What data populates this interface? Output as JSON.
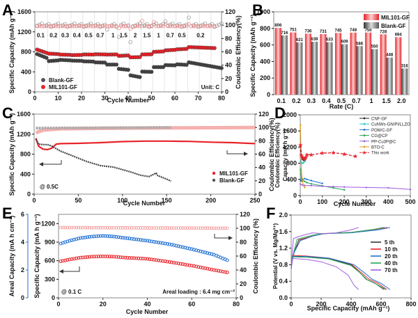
{
  "chart_data": [
    {
      "panel": "A",
      "type": "scatter",
      "xlabel": "Cycle Number",
      "ylabel": "Specific Capacity (mAh g⁻¹)",
      "y2label": "Coulombic Efficiency(%)",
      "xlim": [
        0,
        80
      ],
      "ylim": [
        0,
        1600
      ],
      "y2lim": [
        0,
        120
      ],
      "xticks": [
        "0",
        "10",
        "20",
        "30",
        "40",
        "50",
        "60",
        "70",
        "80"
      ],
      "yticks": [
        "0",
        "400",
        "800",
        "1200",
        "1600"
      ],
      "y2ticks": [
        "0",
        "20",
        "40",
        "60",
        "80",
        "100",
        "120"
      ],
      "rate_labels": [
        "0.1",
        "0.2",
        "0.3",
        "0.4",
        "0.5",
        "0.7",
        "1",
        "1.5",
        "2",
        "1.5",
        "1",
        "0.7",
        "0.5",
        "0.2"
      ],
      "unit_label": "Unit: C",
      "legend": [
        "Blank-GF",
        "MIL101-GF"
      ],
      "series": [
        {
          "name": "MIL101-GF",
          "color": "#e8232a",
          "segments": [
            [
              1,
              5,
              845,
              780
            ],
            [
              6,
              10,
              765,
              755
            ],
            [
              11,
              15,
              745,
              740
            ],
            [
              16,
              20,
              735,
              738
            ],
            [
              21,
              25,
              748,
              745
            ],
            [
              26,
              30,
              752,
              748
            ],
            [
              31,
              35,
              745,
              748
            ],
            [
              36,
              40,
              720,
              728
            ],
            [
              41,
              45,
              690,
              695
            ],
            [
              46,
              50,
              748,
              752
            ],
            [
              51,
              55,
              800,
              808
            ],
            [
              56,
              60,
              830,
              840
            ],
            [
              61,
              65,
              850,
              860
            ],
            [
              66,
              77,
              895,
              875
            ]
          ]
        },
        {
          "name": "Blank-GF",
          "color": "#444444",
          "segments": [
            [
              1,
              5,
              755,
              680
            ],
            [
              6,
              10,
              615,
              630
            ],
            [
              11,
              15,
              640,
              630
            ],
            [
              16,
              20,
              625,
              620
            ],
            [
              21,
              25,
              610,
              605
            ],
            [
              26,
              30,
              590,
              585
            ],
            [
              31,
              35,
              545,
              545
            ],
            [
              36,
              40,
              460,
              440
            ],
            [
              41,
              45,
              330,
              295
            ],
            [
              46,
              50,
              405,
              400
            ],
            [
              51,
              55,
              495,
              495
            ],
            [
              56,
              60,
              535,
              530
            ],
            [
              61,
              65,
              550,
              540
            ],
            [
              66,
              80,
              590,
              475
            ]
          ]
        },
        {
          "name": "MIL101-GF CE (%)",
          "color": "#f08a8a",
          "approx_value": 99
        },
        {
          "name": "Blank-GF CE (%)",
          "color": "#999999",
          "approx_value": 100
        }
      ]
    },
    {
      "panel": "B",
      "type": "bar",
      "title": "",
      "xlabel": "Rate (C)",
      "ylabel": "Specific Capacity (mAh g⁻¹)",
      "ylim": [
        0,
        1000
      ],
      "yticks": [
        "0",
        "200",
        "400",
        "600",
        "800",
        "1000"
      ],
      "categories": [
        "0.1",
        "0.2",
        "0.3",
        "0.4",
        "0.5",
        "0.7",
        "1",
        "1.5",
        "2.0"
      ],
      "series": [
        {
          "name": "MIL101-GF",
          "color": "#e8232a",
          "values": [
            806,
            751,
            736,
            731,
            745,
            749,
            750,
            728,
            694
          ]
        },
        {
          "name": "Blank-GF",
          "color": "#555555",
          "values": [
            716,
            631,
            639,
            633,
            609,
            586,
            550,
            448,
            316
          ]
        }
      ],
      "legend_position": "top-right"
    },
    {
      "panel": "C",
      "type": "line",
      "xlabel": "Cycle Number",
      "ylabel": "Specific Capacity (mAh g⁻¹)",
      "y2label": "Coulombic Efficiency(%)",
      "xlim": [
        0,
        250
      ],
      "ylim": [
        0,
        1600
      ],
      "y2lim": [
        0,
        120
      ],
      "xticks": [
        "0",
        "50",
        "100",
        "150",
        "200",
        "250"
      ],
      "yticks": [
        "0",
        "400",
        "800",
        "1200",
        "1600"
      ],
      "y2ticks": [
        "0",
        "20",
        "40",
        "60",
        "80",
        "100",
        "120"
      ],
      "annotation": "@ 0.5C",
      "legend": [
        "MIL101-GF",
        "Blank-GF"
      ],
      "series": [
        {
          "name": "MIL101-GF capacity",
          "color": "#e8232a",
          "x": [
            2,
            5,
            10,
            15,
            20,
            25,
            30,
            50,
            75,
            100,
            125,
            150,
            175,
            200,
            225,
            250
          ],
          "y": [
            1120,
            960,
            900,
            890,
            920,
            1000,
            1010,
            1015,
            1030,
            1050,
            1060,
            1060,
            1055,
            1040,
            1030,
            1010
          ]
        },
        {
          "name": "Blank-GF capacity",
          "color": "#444444",
          "x": [
            2,
            5,
            10,
            15,
            20,
            30,
            40,
            50,
            60,
            75,
            90,
            100,
            110,
            120,
            130,
            138,
            140,
            150,
            155
          ],
          "y": [
            1100,
            1000,
            990,
            990,
            960,
            860,
            790,
            720,
            650,
            570,
            540,
            490,
            440,
            380,
            350,
            420,
            370,
            300,
            260
          ]
        },
        {
          "name": "MIL101-GF CE (%)",
          "color": "#f08a8a",
          "x": [
            2,
            10,
            30,
            100,
            250
          ],
          "y": [
            92,
            96,
            98,
            99,
            100
          ]
        },
        {
          "name": "Blank-GF CE (%)",
          "color": "#999999",
          "x": [
            2,
            155
          ],
          "y": [
            99,
            100
          ]
        }
      ]
    },
    {
      "panel": "D",
      "type": "line",
      "xlabel": "Cycle Number",
      "ylabel": "Capacity (mA h g⁻¹)",
      "ylabel_extra": "Coulombic Efficiency(%)",
      "xlim": [
        0,
        500
      ],
      "ylim": [
        0,
        2000
      ],
      "xticks": [
        "0",
        "100",
        "200",
        "300",
        "400",
        "500"
      ],
      "yticks": [
        "0",
        "400",
        "800",
        "1200",
        "1600",
        "2000"
      ],
      "series": [
        {
          "name": "CNF-GF",
          "color": "#222222",
          "x": [
            1,
            3,
            5,
            8,
            10,
            15,
            20
          ],
          "y": [
            1250,
            1100,
            1000,
            950,
            900,
            870,
            850
          ]
        },
        {
          "name": "CuNWs-GN/PI/LLZO",
          "color": "#2ec4c4",
          "x": [
            1,
            5,
            10,
            15,
            20,
            25
          ],
          "y": [
            850,
            820,
            800,
            810,
            850,
            900
          ]
        },
        {
          "name": "POM/C-GF",
          "color": "#1f6fd1",
          "x": [
            1,
            5,
            10,
            20,
            30,
            50,
            100
          ],
          "y": [
            380,
            360,
            400,
            420,
            400,
            370,
            300
          ]
        },
        {
          "name": "CG@CP",
          "color": "#22a655",
          "x": [
            1,
            5,
            10,
            20,
            30,
            50,
            100,
            150,
            200
          ],
          "y": [
            650,
            420,
            380,
            350,
            320,
            290,
            240,
            190,
            140
          ]
        },
        {
          "name": "PP-Cu3P@C",
          "color": "#a05ce0",
          "x": [
            1,
            10,
            20,
            50,
            100,
            150,
            200,
            300,
            400,
            500
          ],
          "y": [
            280,
            260,
            250,
            245,
            230,
            220,
            210,
            200,
            190,
            150
          ]
        },
        {
          "name": "BTO-C",
          "color": "#e09a1a",
          "x": [
            1,
            3,
            5,
            10,
            15,
            20
          ],
          "y": [
            1750,
            1200,
            600,
            350,
            250,
            200
          ]
        },
        {
          "name": "This work",
          "color": "#e8232a",
          "x": [
            1,
            5,
            10,
            15,
            20,
            25,
            30,
            50,
            100,
            150,
            200,
            250
          ],
          "y": [
            1250,
            1000,
            950,
            920,
            900,
            950,
            1010,
            1010,
            1050,
            1060,
            1030,
            970
          ]
        }
      ],
      "legend_position": "top-right"
    },
    {
      "panel": "E",
      "type": "scatter",
      "xlabel": "Cycle Number",
      "ylabel": "Specific Capacity (mA h g⁻¹)",
      "ylabel_left": "Areal Capacity (mA h cm⁻²)",
      "y2label": "Coulombic Efficiency (%)",
      "xlim": [
        0,
        80
      ],
      "ylim": [
        0,
        1350
      ],
      "ylim_areal": [
        0,
        6
      ],
      "y2lim": [
        0,
        120
      ],
      "xticks": [
        "0",
        "20",
        "40",
        "60",
        "80"
      ],
      "yticks": [
        "0",
        "300",
        "600",
        "900",
        "1200"
      ],
      "areal_ticks": [
        "0",
        "2",
        "4",
        "6"
      ],
      "y2ticks": [
        "0",
        "20",
        "40",
        "60",
        "80",
        "100",
        "120"
      ],
      "annotation_left": "@ 0.1 C",
      "annotation_right": "Areal loading : 6.4 mg cm⁻²",
      "series": [
        {
          "name": "Specific capacity",
          "color": "#e8232a",
          "x": [
            1,
            5,
            10,
            15,
            20,
            25,
            30,
            40,
            50,
            60,
            70,
            76
          ],
          "y": [
            590,
            620,
            650,
            665,
            670,
            665,
            650,
            630,
            580,
            520,
            450,
            410
          ]
        },
        {
          "name": "Areal capacity",
          "color": "#1f6fd1",
          "x": [
            1,
            5,
            10,
            15,
            20,
            25,
            30,
            40,
            50,
            60,
            70,
            76
          ],
          "y": [
            3.9,
            4.1,
            4.3,
            4.4,
            4.45,
            4.4,
            4.3,
            4.1,
            3.85,
            3.5,
            3.1,
            2.7
          ]
        },
        {
          "name": "Coulombic efficiency",
          "color": "#f08a8a",
          "x": [
            1,
            76
          ],
          "y": [
            101,
            100
          ]
        }
      ]
    },
    {
      "panel": "F",
      "type": "line",
      "xlabel": "Specific Capacity (mAh g⁻¹)",
      "ylabel": "Potential (V vs. Mg/Mg²⁺)",
      "xlim": [
        0,
        800
      ],
      "ylim": [
        0,
        2.0
      ],
      "xticks": [
        "0",
        "200",
        "400",
        "600",
        "800"
      ],
      "yticks": [
        "0.0",
        "0.4",
        "0.8",
        "1.2",
        "1.6",
        "2.0"
      ],
      "series": [
        {
          "name": "5 th",
          "color": "#333333",
          "discharge_x": [
            0,
            10,
            100,
            250,
            400,
            460,
            500,
            560,
            620
          ],
          "discharge_y": [
            0.7,
            1.0,
            1.0,
            0.95,
            0.8,
            0.6,
            0.45,
            0.35,
            0.2
          ],
          "charge_x": [
            0,
            20,
            50,
            150,
            220,
            400,
            550,
            620
          ],
          "charge_y": [
            0.8,
            1.1,
            1.4,
            1.5,
            1.55,
            1.58,
            1.65,
            1.7
          ]
        },
        {
          "name": "10 th",
          "color": "#e8232a",
          "discharge_x": [
            0,
            10,
            100,
            250,
            400,
            470,
            520,
            580,
            640
          ],
          "discharge_y": [
            0.7,
            1.02,
            1.01,
            0.96,
            0.82,
            0.6,
            0.45,
            0.35,
            0.2
          ],
          "charge_x": [
            0,
            20,
            60,
            150,
            220,
            400,
            560,
            640
          ],
          "charge_y": [
            0.8,
            1.1,
            1.4,
            1.5,
            1.55,
            1.58,
            1.65,
            1.7
          ]
        },
        {
          "name": "20 th",
          "color": "#1f6fd1",
          "discharge_x": [
            0,
            10,
            100,
            250,
            420,
            490,
            540,
            600,
            660
          ],
          "discharge_y": [
            0.7,
            1.0,
            1.0,
            0.96,
            0.8,
            0.6,
            0.45,
            0.35,
            0.2
          ],
          "charge_x": [
            0,
            20,
            60,
            150,
            220,
            400,
            580,
            660
          ],
          "charge_y": [
            0.8,
            1.1,
            1.38,
            1.5,
            1.55,
            1.57,
            1.64,
            1.7
          ]
        },
        {
          "name": "40 th",
          "color": "#22a655",
          "discharge_x": [
            0,
            10,
            100,
            250,
            400,
            460,
            510,
            570,
            630
          ],
          "discharge_y": [
            0.7,
            0.99,
            0.98,
            0.94,
            0.78,
            0.6,
            0.43,
            0.33,
            0.2
          ],
          "charge_x": [
            0,
            20,
            40,
            150,
            220,
            400,
            550,
            620
          ],
          "charge_y": [
            0.8,
            1.15,
            1.42,
            1.52,
            1.55,
            1.58,
            1.65,
            1.7
          ]
        },
        {
          "name": "70 th",
          "color": "#a05ce0",
          "discharge_x": [
            0,
            10,
            100,
            200,
            300,
            380,
            420,
            450
          ],
          "discharge_y": [
            0.7,
            0.95,
            0.93,
            0.87,
            0.75,
            0.55,
            0.3,
            0.2
          ],
          "charge_x": [
            0,
            15,
            50,
            140,
            200,
            300,
            400,
            450
          ],
          "charge_y": [
            0.8,
            1.43,
            1.48,
            1.57,
            1.55,
            1.57,
            1.64,
            1.7
          ]
        }
      ],
      "legend_position": "right"
    }
  ],
  "panel_letters": [
    "A",
    "B",
    "C",
    "D",
    "E",
    "F"
  ]
}
